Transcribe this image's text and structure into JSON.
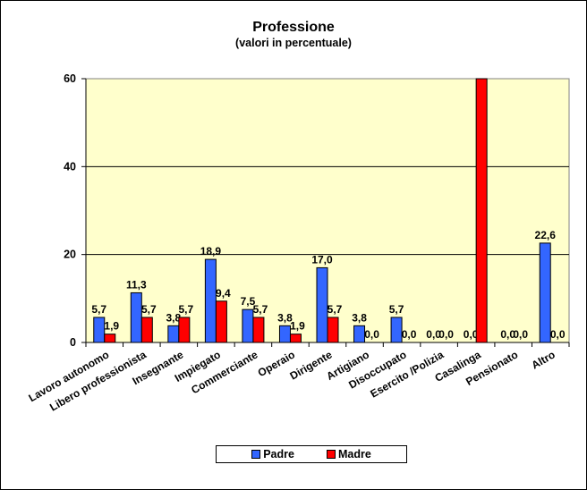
{
  "chart_data": {
    "type": "bar",
    "title": "Professione",
    "subtitle": "(valori in percentuale)",
    "xlabel": "",
    "ylabel": "",
    "ylim": [
      0,
      60
    ],
    "yticks": [
      0,
      20,
      40,
      60
    ],
    "grid": true,
    "legend_position": "bottom",
    "categories": [
      "Lavoro autonomo",
      "Libero professionista",
      "Insegnante",
      "Impiegato",
      "Commerciante",
      "Operaio",
      "Dirigente",
      "Artigiano",
      "Disoccupato",
      "Esercito /Polizia",
      "Casalinga",
      "Pensionato",
      "Altro"
    ],
    "series": [
      {
        "name": "Padre",
        "color": "#3366FF",
        "values": [
          5.7,
          11.3,
          3.8,
          18.9,
          7.5,
          3.8,
          17.0,
          3.8,
          5.7,
          0.0,
          0.0,
          0.0,
          22.6
        ],
        "labels": [
          "5,7",
          "11,3",
          "3,8",
          "18,9",
          "7,5",
          "3,8",
          "17,0",
          "3,8",
          "5,7",
          "0,0",
          "0,0",
          "0,0",
          "22,6"
        ]
      },
      {
        "name": "Madre",
        "color": "#FF0000",
        "values": [
          1.9,
          5.7,
          5.7,
          9.4,
          5.7,
          1.9,
          5.7,
          0.0,
          0.0,
          0.0,
          60.0,
          0.0,
          0.0
        ],
        "labels": [
          "1,9",
          "5,7",
          "5,7",
          "9,4",
          "5,7",
          "1,9",
          "5,7",
          "0,0",
          "0,0",
          "0,0",
          "",
          "0,0",
          "0,0"
        ],
        "notes": "Casalinga Madre bar exceeds the 60 axis max and is clipped; its label is not visible"
      }
    ]
  },
  "style": {
    "plot_bg": "#FFFFCC",
    "gridline": "#000000",
    "padre_color": "#3366FF",
    "madre_color": "#FF0000"
  },
  "legend": {
    "items": [
      {
        "label": "Padre",
        "color": "#3366FF"
      },
      {
        "label": "Madre",
        "color": "#FF0000"
      }
    ]
  }
}
